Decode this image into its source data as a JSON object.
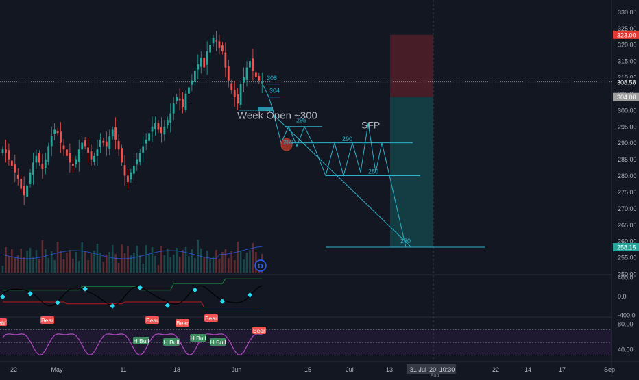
{
  "chart_data": {
    "type": "candlestick",
    "symbol_interval": "1D",
    "price_axis": {
      "ticks": [
        "330.00",
        "325.00",
        "320.00",
        "315.00",
        "310.00",
        "305.00",
        "300.00",
        "295.00",
        "290.00",
        "285.00",
        "280.00",
        "275.00",
        "270.00",
        "265.00",
        "260.00",
        "255.00",
        "250.00"
      ],
      "range": [
        250,
        333
      ]
    },
    "price_labels": [
      {
        "text": "323.00",
        "value": 323,
        "color": "#e53935"
      },
      {
        "text": "308.58",
        "value": 308.58,
        "color": "#ffffff"
      },
      {
        "text": "304.00",
        "value": 304,
        "color": "#9e9e9e"
      },
      {
        "text": "258.15",
        "value": 258.15,
        "color": "#26a69a"
      }
    ],
    "x_axis": {
      "ticks": [
        "22",
        "May",
        "11",
        "18",
        "Jun",
        "15",
        "Jul",
        "13",
        "22",
        "17",
        "Sep",
        "14"
      ],
      "cursor_label": "31 Jul '20",
      "cursor_time": "10:30",
      "partial_label": "Aug"
    },
    "candles_close": [
      288,
      287,
      285,
      283,
      281,
      279,
      276,
      274,
      277,
      281,
      284,
      286,
      284,
      282,
      285,
      289,
      292,
      294,
      293,
      290,
      288,
      286,
      284,
      283,
      285,
      288,
      290,
      289,
      287,
      285,
      286,
      288,
      291,
      290,
      289,
      292,
      294,
      291,
      288,
      284,
      280,
      278,
      281,
      283,
      285,
      287,
      289,
      291,
      293,
      295,
      296,
      294,
      293,
      295,
      297,
      299,
      302,
      304,
      303,
      301,
      305,
      307,
      309,
      312,
      314,
      316,
      313,
      318,
      320,
      322,
      321,
      319,
      318,
      313,
      309,
      306,
      304,
      302,
      308,
      310,
      313,
      315,
      312,
      310,
      309,
      308.5
    ],
    "annotations": {
      "week_open": "Week Open ~300",
      "sfp": "SFP",
      "level_308": "308",
      "level_304": "304",
      "level_290": "290",
      "level_280": "280",
      "level_260": "260",
      "level_295": "295",
      "level_289": "289"
    },
    "volume_marker": "D",
    "osc1": {
      "ticks": [
        "400.0",
        "0.0",
        "-400.0"
      ],
      "range": [
        -450,
        450
      ]
    },
    "rsi": {
      "ticks": [
        "80.00",
        "40.00"
      ],
      "range": [
        20,
        90
      ],
      "labels": [
        {
          "text": "Bear",
          "kind": "bear"
        },
        {
          "text": "Bear",
          "kind": "bear"
        },
        {
          "text": "Bear",
          "kind": "bear"
        },
        {
          "text": "Bear",
          "kind": "bear"
        },
        {
          "text": "Bear",
          "kind": "bear"
        },
        {
          "text": "Bear",
          "kind": "bear"
        },
        {
          "text": "H Bull",
          "kind": "bull"
        },
        {
          "text": "H Bull",
          "kind": "bull"
        },
        {
          "text": "H Bull",
          "kind": "bull"
        },
        {
          "text": "H Bull",
          "kind": "bull"
        }
      ]
    },
    "colors": {
      "background": "#131722",
      "up": "#26a69a",
      "down": "#ef5350",
      "drawing": "#2fb1c9",
      "stop_zone": "#4a1f29",
      "target_zone": "#133f44",
      "rsi_line": "#ab47bc",
      "osc_line": "#000000",
      "osc_upper": "#1b8a3e",
      "osc_lower": "#b71c1c"
    }
  }
}
